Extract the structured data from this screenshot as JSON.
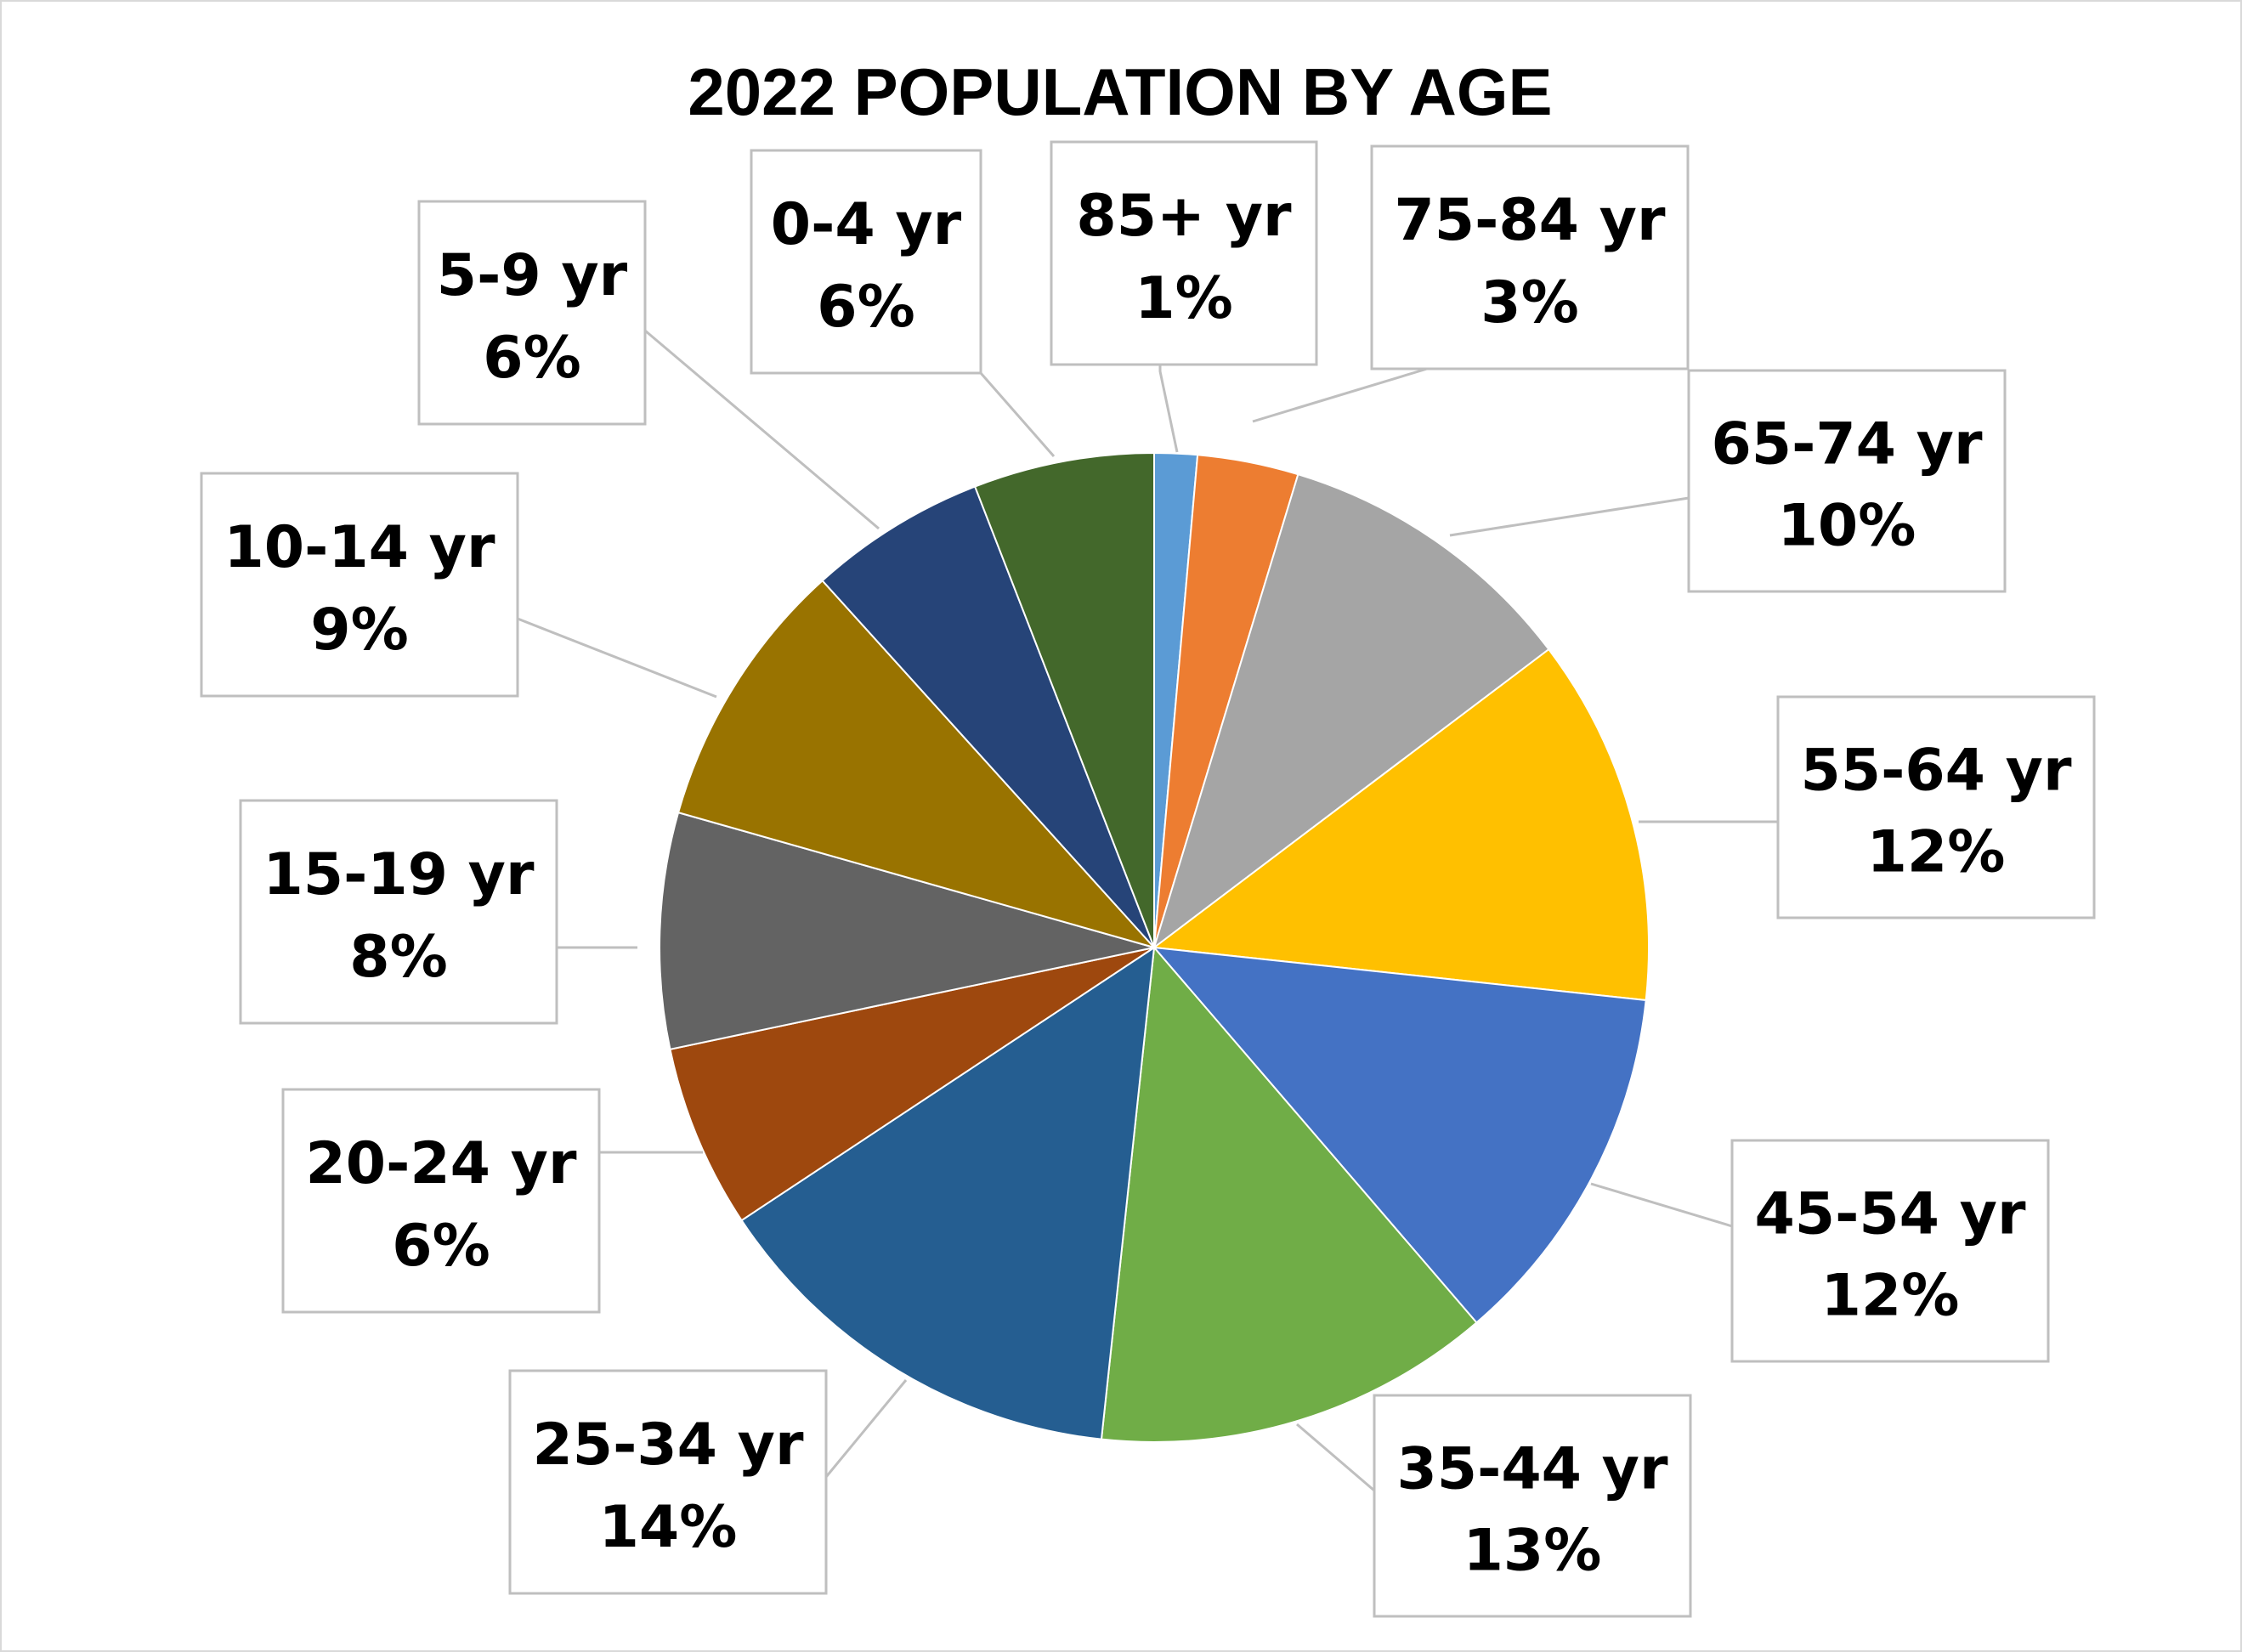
{
  "chart_data": {
    "type": "pie",
    "title": "2022 POPULATION BY AGE",
    "start_angle_deg": 0,
    "direction": "clockwise",
    "legend": "none",
    "slices": [
      {
        "label": "85+ yr",
        "value": 1.4,
        "percent_label": "1%",
        "color": "#5B9BD5"
      },
      {
        "label": "75-84 yr",
        "value": 3.3,
        "percent_label": "3%",
        "color": "#ED7D31"
      },
      {
        "label": "65-74 yr",
        "value": 10.0,
        "percent_label": "10%",
        "color": "#A5A5A5"
      },
      {
        "label": "55-64 yr",
        "value": 12.0,
        "percent_label": "12%",
        "color": "#FFC000"
      },
      {
        "label": "45-54 yr",
        "value": 12.0,
        "percent_label": "12%",
        "color": "#4472C4"
      },
      {
        "label": "35-44 yr",
        "value": 13.0,
        "percent_label": "13%",
        "color": "#70AD47"
      },
      {
        "label": "25-34 yr",
        "value": 14.0,
        "percent_label": "14%",
        "color": "#255E91"
      },
      {
        "label": "20-24 yr",
        "value": 6.0,
        "percent_label": "6%",
        "color": "#9E480E"
      },
      {
        "label": "15-19 yr",
        "value": 7.7,
        "percent_label": "8%",
        "color": "#636363"
      },
      {
        "label": "10-14 yr",
        "value": 8.9,
        "percent_label": "9%",
        "color": "#997300"
      },
      {
        "label": "5-9 yr",
        "value": 5.8,
        "percent_label": "6%",
        "color": "#264478"
      },
      {
        "label": "0-4 yr",
        "value": 5.9,
        "percent_label": "6%",
        "color": "#43682B"
      }
    ]
  }
}
